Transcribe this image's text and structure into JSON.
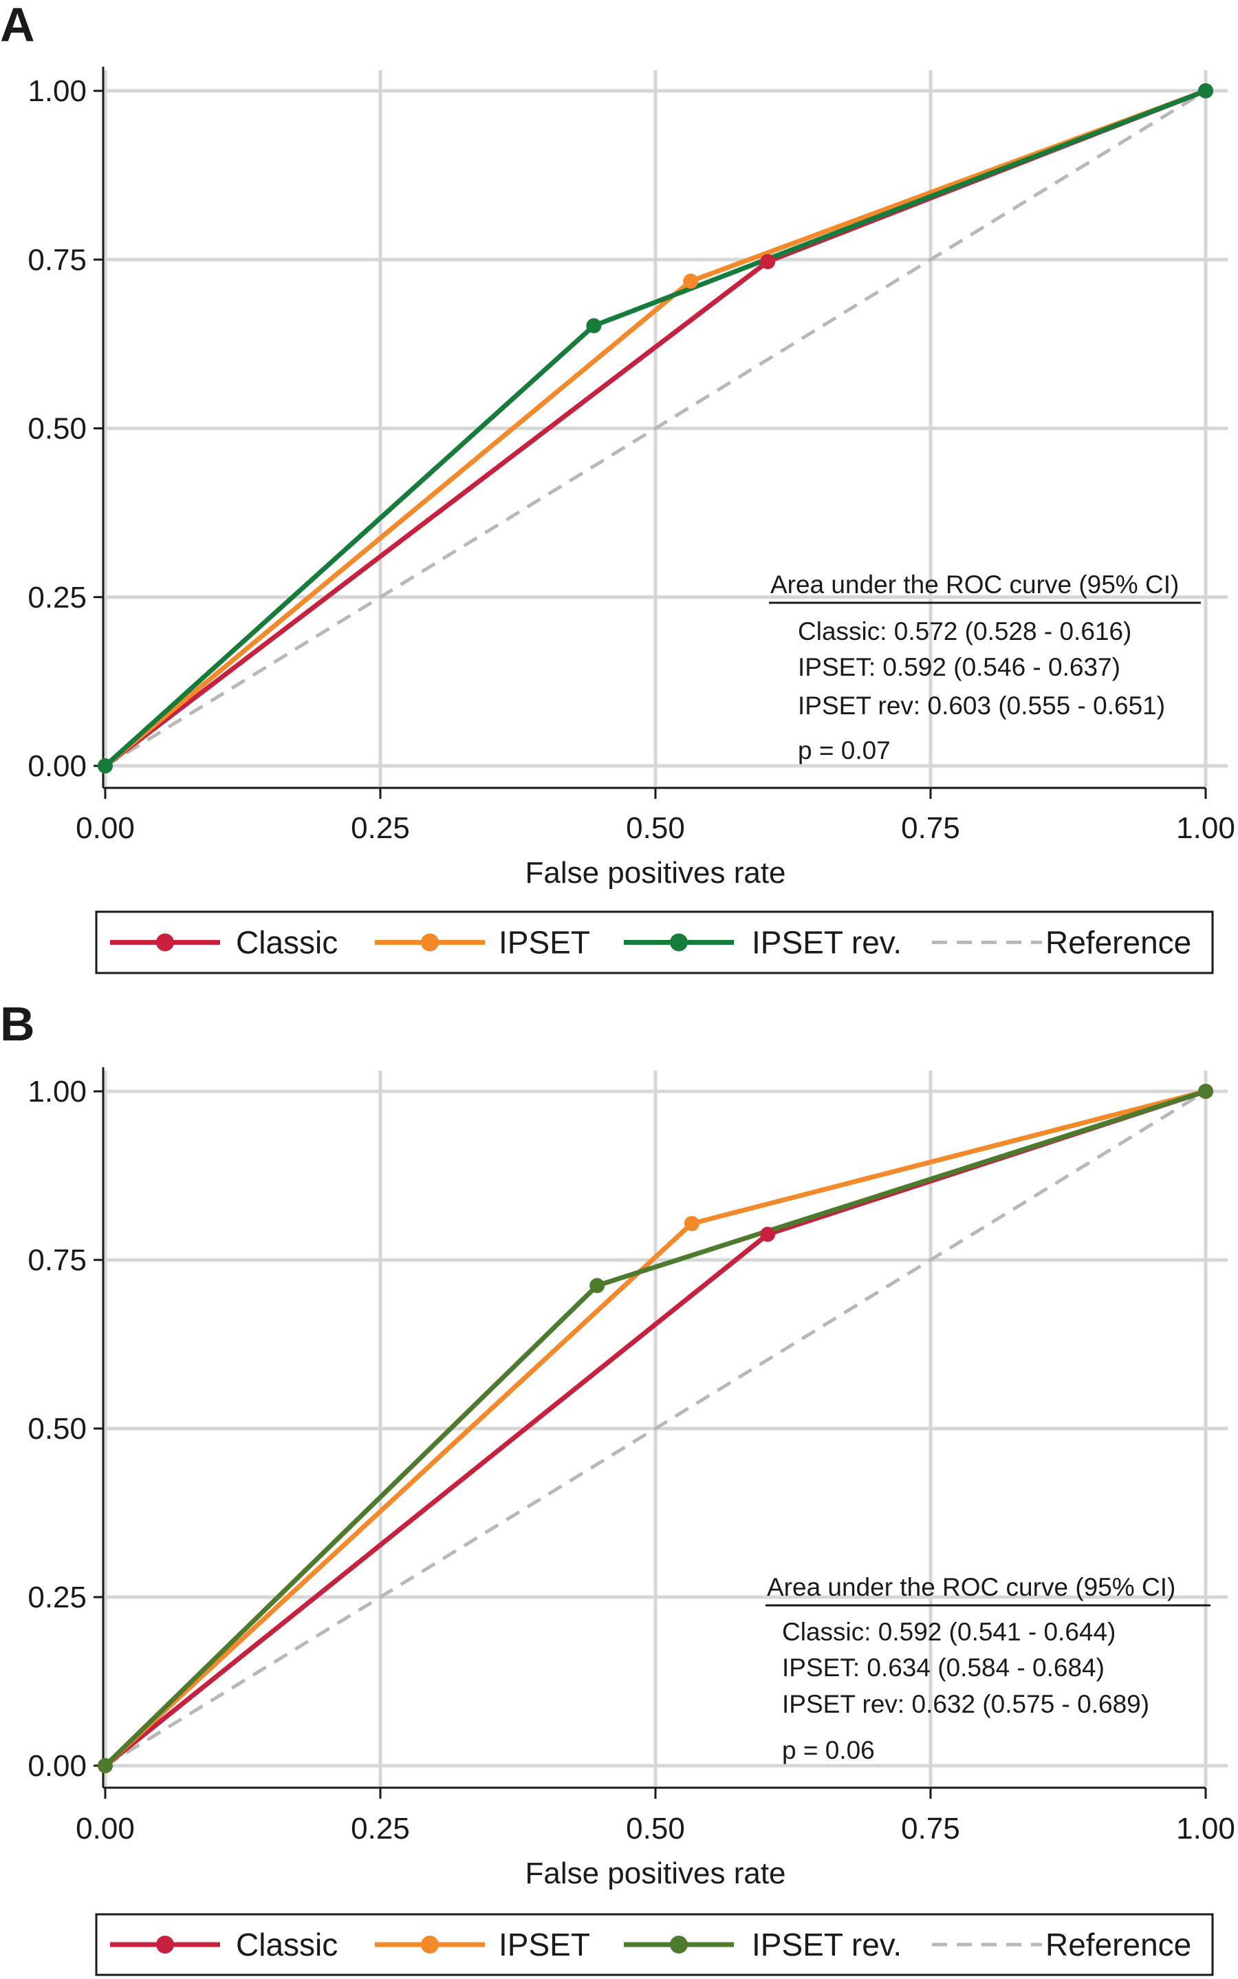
{
  "chart_data": [
    {
      "panel": "A",
      "type": "line",
      "xlabel": "False positives rate",
      "ylabel": "",
      "xlim": [
        0,
        1
      ],
      "ylim": [
        0,
        1
      ],
      "xticks": [
        "0.00",
        "0.25",
        "0.50",
        "0.75",
        "1.00"
      ],
      "yticks": [
        "0.00",
        "0.25",
        "0.50",
        "0.75",
        "1.00"
      ],
      "grid": true,
      "series": [
        {
          "name": "Classic",
          "color": "#c8203f",
          "x": [
            0,
            0.602,
            1
          ],
          "y": [
            0,
            0.747,
            1
          ]
        },
        {
          "name": "IPSET",
          "color": "#f4892a",
          "x": [
            0,
            0.532,
            1
          ],
          "y": [
            0,
            0.718,
            1
          ]
        },
        {
          "name": "IPSET rev.",
          "color": "#167c3c",
          "x": [
            0,
            0.444,
            1
          ],
          "y": [
            0,
            0.652,
            1
          ]
        }
      ],
      "reference": {
        "name": "Reference",
        "color": "#b8b8b8"
      },
      "auc_box": {
        "heading": "Area under the ROC curve (95% CI)",
        "lines": [
          "Classic: 0.572 (0.528 - 0.616)",
          "IPSET: 0.592 (0.546 - 0.637)",
          "IPSET rev: 0.603 (0.555 - 0.651)",
          "p = 0.07"
        ]
      }
    },
    {
      "panel": "B",
      "type": "line",
      "xlabel": "False positives rate",
      "ylabel": "",
      "xlim": [
        0,
        1
      ],
      "ylim": [
        0,
        1
      ],
      "xticks": [
        "0.00",
        "0.25",
        "0.50",
        "0.75",
        "1.00"
      ],
      "yticks": [
        "0.00",
        "0.25",
        "0.50",
        "0.75",
        "1.00"
      ],
      "grid": true,
      "series": [
        {
          "name": "Classic",
          "color": "#c8203f",
          "x": [
            0,
            0.602,
            1
          ],
          "y": [
            0,
            0.788,
            1
          ]
        },
        {
          "name": "IPSET",
          "color": "#f4892a",
          "x": [
            0,
            0.533,
            1
          ],
          "y": [
            0,
            0.804,
            1
          ]
        },
        {
          "name": "IPSET rev.",
          "color": "#4e7a2e",
          "x": [
            0,
            0.447,
            1
          ],
          "y": [
            0,
            0.712,
            1
          ]
        }
      ],
      "reference": {
        "name": "Reference",
        "color": "#b8b8b8"
      },
      "auc_box": {
        "heading": "Area under the ROC curve (95% CI)",
        "lines": [
          "Classic: 0.592 (0.541 - 0.644)",
          "IPSET: 0.634 (0.584 - 0.684)",
          "IPSET rev: 0.632 (0.575 - 0.689)",
          "p = 0.06"
        ]
      }
    }
  ]
}
